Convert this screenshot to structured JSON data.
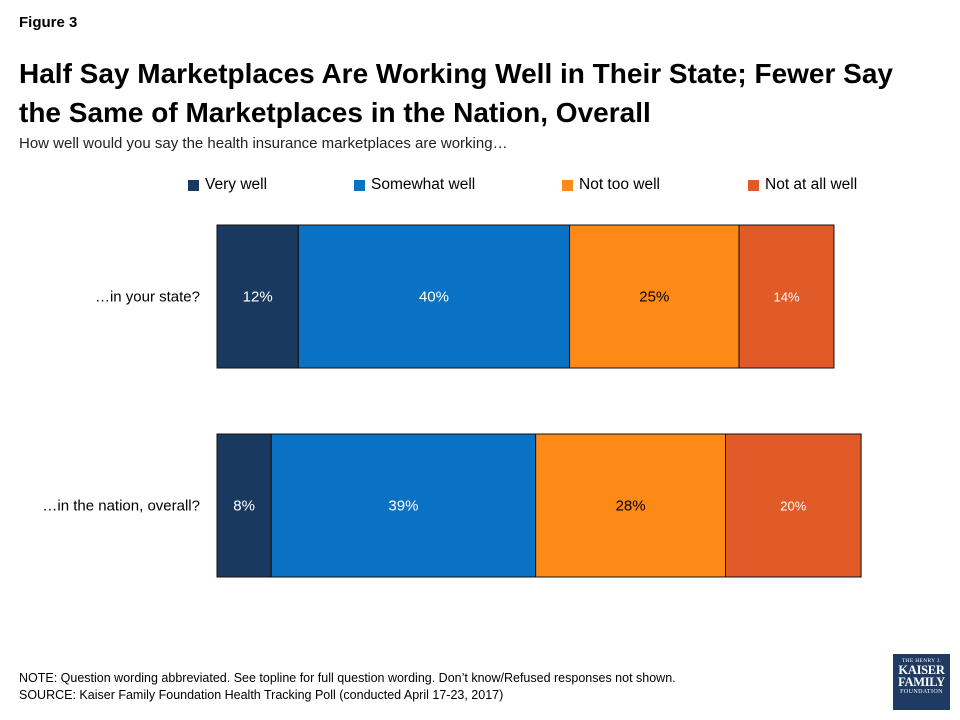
{
  "figure_label": "Figure 3",
  "title": "Half Say Marketplaces Are Working Well in Their State; Fewer Say the Same of Marketplaces in the Nation, Overall",
  "subtitle": "How well would you say the health insurance marketplaces are working…",
  "legend": [
    {
      "label": "Very well",
      "color": "#1a3960"
    },
    {
      "label": "Somewhat well",
      "color": "#0a72c4"
    },
    {
      "label": "Not too well",
      "color": "#fd8a17"
    },
    {
      "label": "Not at all well",
      "color": "#e05b27"
    }
  ],
  "chart_data": {
    "type": "bar",
    "orientation": "horizontal",
    "stacked": true,
    "unit": "%",
    "categories": [
      "…in your state?",
      "…in the nation, overall?"
    ],
    "series": [
      {
        "name": "Very well",
        "values": [
          12,
          8
        ],
        "color": "#1a3960"
      },
      {
        "name": "Somewhat well",
        "values": [
          40,
          39
        ],
        "color": "#0a72c4"
      },
      {
        "name": "Not too well",
        "values": [
          25,
          28
        ],
        "color": "#fd8a17"
      },
      {
        "name": "Not at all well",
        "values": [
          14,
          20
        ],
        "color": "#e05b27"
      }
    ],
    "data_labels": [
      [
        "12%",
        "8%"
      ],
      [
        "40%",
        "39%"
      ],
      [
        "25%",
        "28%"
      ],
      [
        "14%",
        "20%"
      ]
    ],
    "xlim": [
      0,
      100
    ],
    "grid": false,
    "legend_position": "top"
  },
  "notes": {
    "note": "NOTE: Question wording abbreviated. See topline for full question wording. Don’t know/Refused responses not shown.",
    "source": "SOURCE: Kaiser Family Foundation Health Tracking Poll (conducted April 17-23, 2017)"
  },
  "logo": {
    "top": "THE HENRY J.",
    "line1": "KAISER",
    "line2": "FAMILY",
    "bottom": "FOUNDATION"
  }
}
